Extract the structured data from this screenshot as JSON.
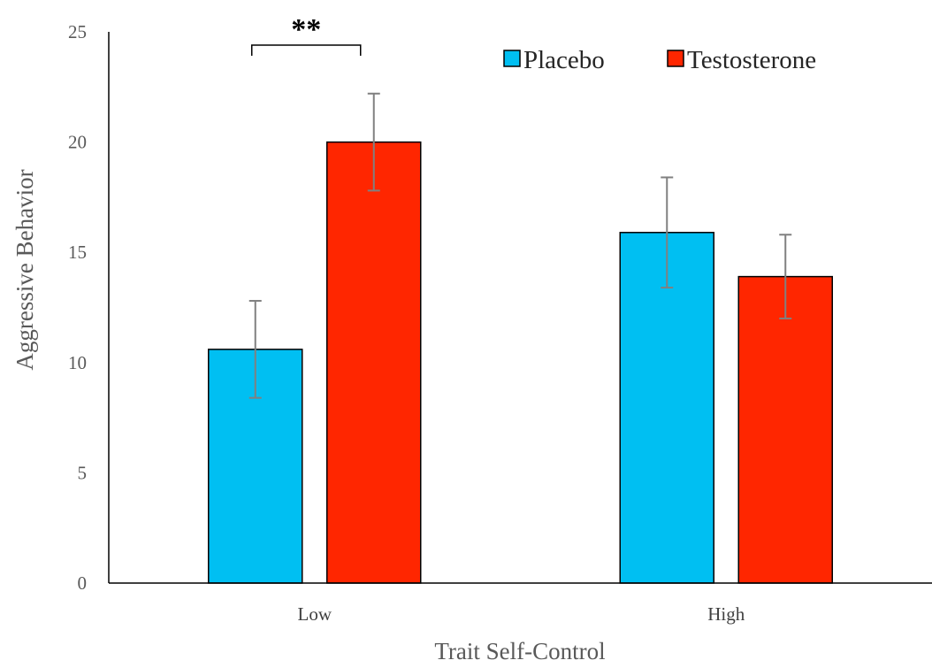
{
  "chart_data": {
    "type": "bar",
    "xlabel": "Trait Self-Control",
    "ylabel": "Aggressive Behavior",
    "categories": [
      "Low",
      "High"
    ],
    "ylim": [
      0,
      25
    ],
    "yticks": [
      0,
      5,
      10,
      15,
      20,
      25
    ],
    "grid": false,
    "legend_position": "top-right",
    "series": [
      {
        "name": "Placebo",
        "color": "#00BFF2",
        "values": [
          10.6,
          15.9
        ],
        "error": [
          2.2,
          2.5
        ]
      },
      {
        "name": "Testosterone",
        "color": "#FF2600",
        "values": [
          20.0,
          13.9
        ],
        "error": [
          2.2,
          1.9
        ]
      }
    ],
    "annotations": [
      {
        "text": "**",
        "between_category": "Low",
        "type": "significance-bracket"
      }
    ]
  }
}
